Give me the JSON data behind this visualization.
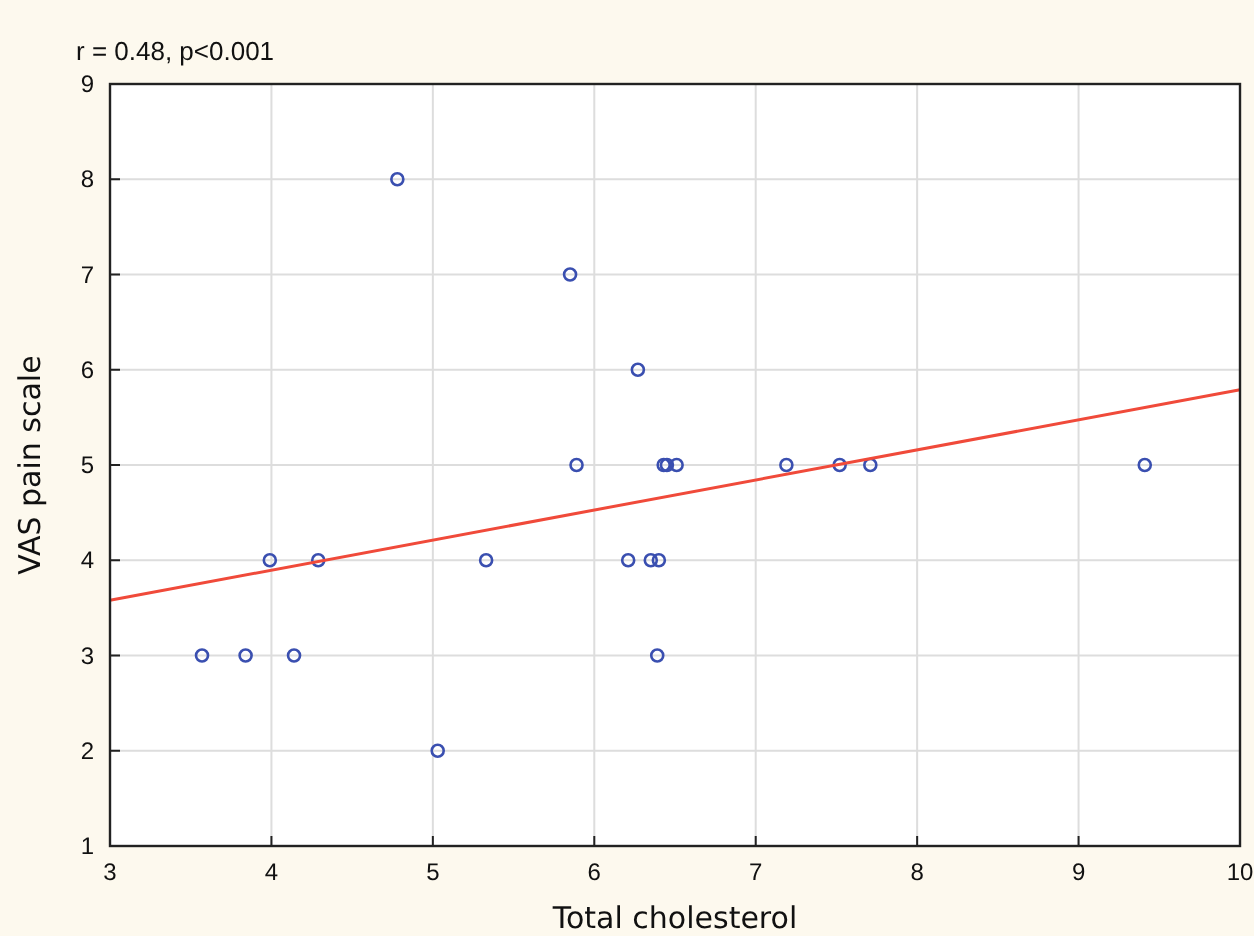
{
  "chart_data": {
    "type": "scatter",
    "title": "r = 0.48, p<0.001",
    "xlabel": "Total cholesterol",
    "ylabel": "VAS pain scale",
    "xlim": [
      3,
      10
    ],
    "ylim": [
      1,
      9
    ],
    "xticks": [
      3,
      4,
      5,
      6,
      7,
      8,
      9,
      10
    ],
    "yticks": [
      1,
      2,
      3,
      4,
      5,
      6,
      7,
      8,
      9
    ],
    "grid": true,
    "series": [
      {
        "type": "scatter",
        "color": "#3a4fb0",
        "marker": "circle",
        "x": [
          3.57,
          3.84,
          4.14,
          3.99,
          4.29,
          4.78,
          5.03,
          5.33,
          5.85,
          5.89,
          6.27,
          6.21,
          6.35,
          6.4,
          6.39,
          6.43,
          6.45,
          6.51,
          7.19,
          7.52,
          7.71,
          9.41
        ],
        "values": [
          3,
          3,
          3,
          4,
          4,
          8,
          2,
          4,
          7,
          5,
          6,
          4,
          4,
          4,
          3,
          5,
          5,
          5,
          5,
          5,
          5,
          5
        ]
      },
      {
        "type": "line",
        "color": "#f04a3a",
        "x": [
          3,
          10
        ],
        "values": [
          3.58,
          5.79
        ],
        "marker": "none"
      }
    ]
  }
}
